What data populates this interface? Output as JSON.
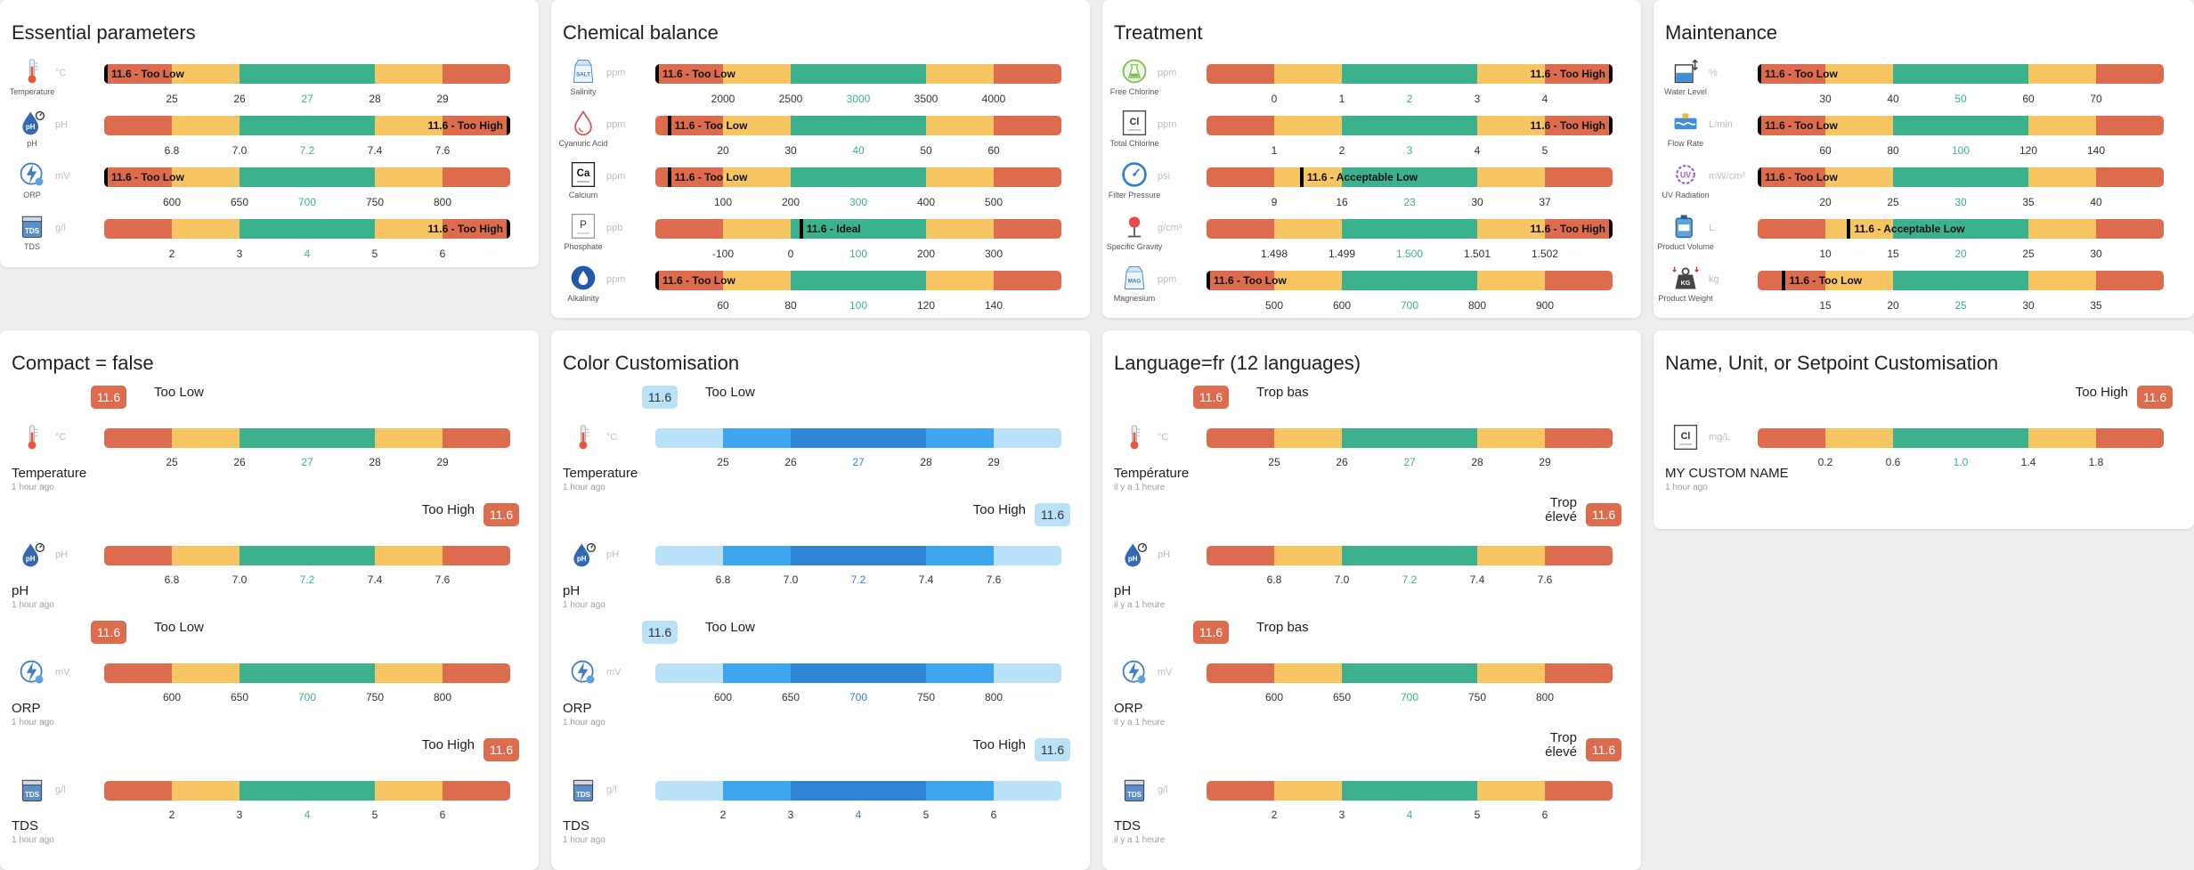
{
  "colors": {
    "red": "#dd6b4d",
    "yellow": "#f7c662",
    "green": "#3bb18d",
    "light_blue": "#b9e1f7",
    "mid_blue": "#3ea6ef",
    "dark_blue": "#2f86d8"
  },
  "cards": [
    {
      "id": "essential",
      "title": "Essential parameters",
      "rows": [
        {
          "icon": "thermometer-icon",
          "label": "Temperature",
          "unit": "°C",
          "value_text": "11.6 - Too Low",
          "marker": 0.0,
          "ticks": [
            "25",
            "26",
            "27",
            "28",
            "29"
          ],
          "mid": 2
        },
        {
          "icon": "ph-drop-icon",
          "label": "pH",
          "unit": "pH",
          "value_text": "11.6 - Too High",
          "marker": 1.0,
          "ticks": [
            "6.8",
            "7.0",
            "7.2",
            "7.4",
            "7.6"
          ],
          "mid": 2
        },
        {
          "icon": "orp-bolt-icon",
          "label": "ORP",
          "unit": "mV",
          "value_text": "11.6 - Too Low",
          "marker": 0.0,
          "ticks": [
            "600",
            "650",
            "700",
            "750",
            "800"
          ],
          "mid": 2
        },
        {
          "icon": "tds-icon",
          "label": "TDS",
          "unit": "g/l",
          "value_text": "11.6 - Too High",
          "marker": 1.0,
          "ticks": [
            "2",
            "3",
            "4",
            "5",
            "6"
          ],
          "mid": 2
        }
      ]
    },
    {
      "id": "chemical",
      "title": "Chemical balance",
      "rows": [
        {
          "icon": "salt-bag-icon",
          "label": "Salinity",
          "unit": "ppm",
          "value_text": "11.6 - Too Low",
          "marker": 0.0,
          "ticks": [
            "2000",
            "2500",
            "3000",
            "3500",
            "4000"
          ],
          "mid": 2
        },
        {
          "icon": "cyanuric-drop-icon",
          "label": "Cyanuric Acid",
          "unit": "ppm",
          "value_text": "11.6 - Too Low",
          "marker": 0.03,
          "ticks": [
            "20",
            "30",
            "40",
            "50",
            "60"
          ],
          "mid": 2
        },
        {
          "icon": "calcium-box-icon",
          "label": "Calcium",
          "unit": "ppm",
          "value_text": "11.6 - Too Low",
          "marker": 0.03,
          "ticks": [
            "100",
            "200",
            "300",
            "400",
            "500"
          ],
          "mid": 2
        },
        {
          "icon": "phosphate-box-icon",
          "label": "Phosphate",
          "unit": "ppb",
          "value_text": "11.6 - Ideal",
          "marker": 0.355,
          "ticks": [
            "-100",
            "0",
            "100",
            "200",
            "300"
          ],
          "mid": 2
        },
        {
          "icon": "alkalinity-drop-icon",
          "label": "Alkalinity",
          "unit": "ppm",
          "value_text": "11.6 - Too Low",
          "marker": 0.0,
          "ticks": [
            "60",
            "80",
            "100",
            "120",
            "140"
          ],
          "mid": 2
        }
      ]
    },
    {
      "id": "treatment",
      "title": "Treatment",
      "rows": [
        {
          "icon": "free-chlorine-icon",
          "label": "Free Chlorine",
          "unit": "ppm",
          "value_text": "11.6 - Too High",
          "marker": 1.0,
          "ticks": [
            "0",
            "1",
            "2",
            "3",
            "4"
          ],
          "mid": 2
        },
        {
          "icon": "total-chlorine-box-icon",
          "label": "Total Chlorine",
          "unit": "ppm",
          "value_text": "11.6 - Too High",
          "marker": 1.0,
          "ticks": [
            "1",
            "2",
            "3",
            "4",
            "5"
          ],
          "mid": 2
        },
        {
          "icon": "pressure-gauge-icon",
          "label": "Filter Pressure",
          "unit": "psi",
          "value_text": "11.6 - Acceptable Low",
          "marker": 0.23,
          "ticks": [
            "9",
            "16",
            "23",
            "30",
            "37"
          ],
          "mid": 2
        },
        {
          "icon": "gravity-icon",
          "label": "Specific Gravity",
          "unit": "g/cm³",
          "value_text": "11.6 - Too High",
          "marker": 1.0,
          "ticks": [
            "1.498",
            "1.499",
            "1.500",
            "1.501",
            "1.502"
          ],
          "mid": 2
        },
        {
          "icon": "magnesium-bag-icon",
          "label": "Magnesium",
          "unit": "ppm",
          "value_text": "11.6 - Too Low",
          "marker": 0.0,
          "ticks": [
            "500",
            "600",
            "700",
            "800",
            "900"
          ],
          "mid": 2
        }
      ]
    },
    {
      "id": "maintenance",
      "title": "Maintenance",
      "rows": [
        {
          "icon": "water-level-icon",
          "label": "Water Level",
          "unit": "%",
          "value_text": "11.6 - Too Low",
          "marker": 0.0,
          "ticks": [
            "30",
            "40",
            "50",
            "60",
            "70"
          ],
          "mid": 2
        },
        {
          "icon": "flow-rate-icon",
          "label": "Flow Rate",
          "unit": "L/min",
          "value_text": "11.6 - Too Low",
          "marker": 0.0,
          "ticks": [
            "60",
            "80",
            "100",
            "120",
            "140"
          ],
          "mid": 2
        },
        {
          "icon": "uv-radiation-icon",
          "label": "UV Radiation",
          "unit": "mW/cm²",
          "value_text": "11.6 - Too Low",
          "marker": 0.0,
          "ticks": [
            "20",
            "25",
            "30",
            "35",
            "40"
          ],
          "mid": 2
        },
        {
          "icon": "product-volume-icon",
          "label": "Product Volume",
          "unit": "L",
          "value_text": "11.6 - Acceptable Low",
          "marker": 0.22,
          "ticks": [
            "10",
            "15",
            "20",
            "25",
            "30"
          ],
          "mid": 2
        },
        {
          "icon": "product-weight-icon",
          "label": "Product Weight",
          "unit": "kg",
          "value_text": "11.6 - Too Low",
          "marker": 0.06,
          "ticks": [
            "15",
            "20",
            "25",
            "30",
            "35"
          ],
          "mid": 2
        }
      ]
    }
  ],
  "bottom_cards": [
    {
      "id": "compact",
      "title": "Compact = false",
      "scheme": "default",
      "time": "1 hour ago",
      "rows": [
        {
          "icon": "thermometer-icon",
          "name": "Temperature",
          "unit": "°C",
          "value": "11.6",
          "state": "Too Low",
          "low": true,
          "ticks": [
            "25",
            "26",
            "27",
            "28",
            "29"
          ]
        },
        {
          "icon": "ph-drop-icon",
          "name": "pH",
          "unit": "pH",
          "value": "11.6",
          "state": "Too High",
          "low": false,
          "ticks": [
            "6.8",
            "7.0",
            "7.2",
            "7.4",
            "7.6"
          ]
        },
        {
          "icon": "orp-bolt-icon",
          "name": "ORP",
          "unit": "mV",
          "value": "11.6",
          "state": "Too Low",
          "low": true,
          "ticks": [
            "600",
            "650",
            "700",
            "750",
            "800"
          ]
        },
        {
          "icon": "tds-icon",
          "name": "TDS",
          "unit": "g/l",
          "value": "11.6",
          "state": "Too High",
          "low": false,
          "ticks": [
            "2",
            "3",
            "4",
            "5",
            "6"
          ]
        }
      ]
    },
    {
      "id": "color",
      "title": "Color Customisation",
      "scheme": "blue",
      "time": "1 hour ago",
      "rows": [
        {
          "icon": "thermometer-icon",
          "name": "Temperature",
          "unit": "°C",
          "value": "11.6",
          "state": "Too Low",
          "low": true,
          "ticks": [
            "25",
            "26",
            "27",
            "28",
            "29"
          ]
        },
        {
          "icon": "ph-drop-icon",
          "name": "pH",
          "unit": "pH",
          "value": "11.6",
          "state": "Too High",
          "low": false,
          "ticks": [
            "6.8",
            "7.0",
            "7.2",
            "7.4",
            "7.6"
          ]
        },
        {
          "icon": "orp-bolt-icon",
          "name": "ORP",
          "unit": "mV",
          "value": "11.6",
          "state": "Too Low",
          "low": true,
          "ticks": [
            "600",
            "650",
            "700",
            "750",
            "800"
          ]
        },
        {
          "icon": "tds-icon",
          "name": "TDS",
          "unit": "g/l",
          "value": "11.6",
          "state": "Too High",
          "low": false,
          "ticks": [
            "2",
            "3",
            "4",
            "5",
            "6"
          ]
        }
      ]
    },
    {
      "id": "language",
      "title": "Language=fr (12 languages)",
      "scheme": "default",
      "time": "il y a 1 heure",
      "rows": [
        {
          "icon": "thermometer-icon",
          "name": "Température",
          "unit": "°C",
          "value": "11.6",
          "state": "Trop bas",
          "low": true,
          "ticks": [
            "25",
            "26",
            "27",
            "28",
            "29"
          ]
        },
        {
          "icon": "ph-drop-icon",
          "name": "pH",
          "unit": "pH",
          "value": "11.6",
          "state": "Trop\nélevé",
          "low": false,
          "ticks": [
            "6.8",
            "7.0",
            "7.2",
            "7.4",
            "7.6"
          ]
        },
        {
          "icon": "orp-bolt-icon",
          "name": "ORP",
          "unit": "mV",
          "value": "11.6",
          "state": "Trop bas",
          "low": true,
          "ticks": [
            "600",
            "650",
            "700",
            "750",
            "800"
          ]
        },
        {
          "icon": "tds-icon",
          "name": "TDS",
          "unit": "g/l",
          "value": "11.6",
          "state": "Trop\nélevé",
          "low": false,
          "ticks": [
            "2",
            "3",
            "4",
            "5",
            "6"
          ]
        }
      ]
    },
    {
      "id": "custom",
      "title": "Name, Unit, or Setpoint Customisation",
      "scheme": "default",
      "time": "1 hour ago",
      "rows": [
        {
          "icon": "total-chlorine-box-icon",
          "name": "MY CUSTOM NAME",
          "unit": "mg/L",
          "value": "11.6",
          "state": "Too High",
          "low": false,
          "ticks": [
            "0.2",
            "0.6",
            "1.0",
            "1.4",
            "1.8"
          ]
        }
      ]
    }
  ],
  "icon_text": {
    "calcium_symbol": "Ca",
    "phosphate_symbol": "P",
    "chlorine_symbol": "Cl",
    "magnesium_symbol": "MAG",
    "salt_symbol": "SALT",
    "tds_symbol": "TDS",
    "ph_symbol": "pH",
    "uv_symbol": "UV",
    "kg_symbol": "KG"
  }
}
